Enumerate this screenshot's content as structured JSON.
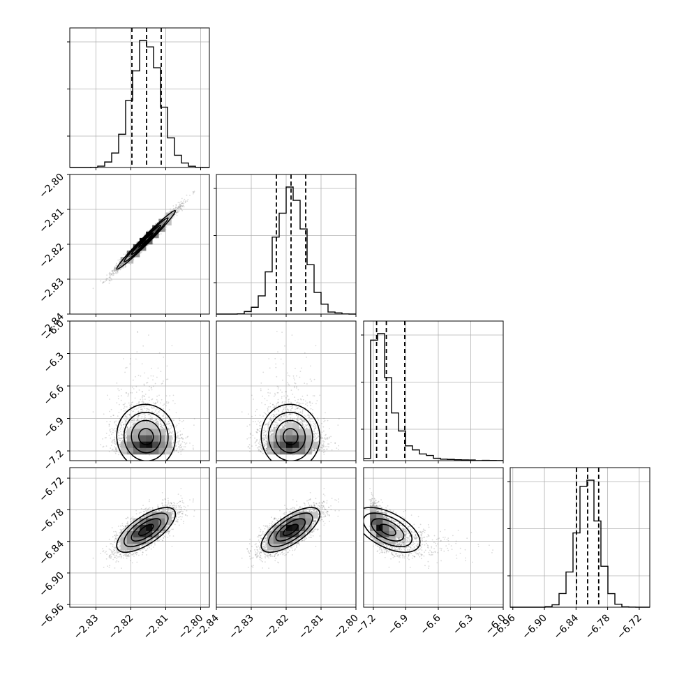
{
  "chart_data": {
    "type": "corner",
    "title": "",
    "parameters": [
      {
        "name": "",
        "ticks": [
          -2.83,
          -2.82,
          -2.81,
          -2.8
        ],
        "tick_labels": [
          "−2.83",
          "−2.82",
          "−2.81",
          "−2.80"
        ],
        "range": [
          -2.8375,
          -2.7975
        ],
        "mean": -2.8155,
        "sd": 0.0042,
        "skew": 0,
        "quantiles": [
          -2.8197,
          -2.8155,
          -2.8113
        ]
      },
      {
        "name": "",
        "ticks": [
          -2.84,
          -2.83,
          -2.82,
          -2.81,
          -2.8
        ],
        "tick_labels": [
          "−2.84",
          "−2.83",
          "−2.82",
          "−2.81",
          "−2.80"
        ],
        "range": [
          -2.84,
          -2.8
        ],
        "mean": -2.8186,
        "sd": 0.0042,
        "skew": 0,
        "quantiles": [
          -2.8228,
          -2.8186,
          -2.8144
        ]
      },
      {
        "name": "",
        "ticks": [
          -7.2,
          -6.9,
          -6.6,
          -6.3,
          -6.0
        ],
        "tick_labels": [
          "−7.2",
          "−6.9",
          "−6.6",
          "−6.3",
          "−6.0"
        ],
        "range": [
          -7.29,
          -6.0
        ],
        "mean": -7.11,
        "sd": 0.1,
        "skew": 1,
        "quantiles": [
          -7.17,
          -7.08,
          -6.91
        ]
      },
      {
        "name": "",
        "ticks": [
          -6.96,
          -6.9,
          -6.84,
          -6.78,
          -6.72
        ],
        "tick_labels": [
          "−6.96",
          "−6.90",
          "−6.84",
          "−6.78",
          "−6.72"
        ],
        "range": [
          -6.965,
          -6.7
        ],
        "mean": -6.818,
        "sd": 0.021,
        "skew": 0,
        "quantiles": [
          -6.839,
          -6.818,
          -6.797
        ]
      }
    ],
    "correlations": [
      {
        "pair": [
          1,
          0
        ],
        "rho": 0.985
      },
      {
        "pair": [
          2,
          0
        ],
        "rho": 0.0
      },
      {
        "pair": [
          2,
          1
        ],
        "rho": 0.0
      },
      {
        "pair": [
          3,
          0
        ],
        "rho": 0.7
      },
      {
        "pair": [
          3,
          1
        ],
        "rho": 0.7
      },
      {
        "pair": [
          3,
          2
        ],
        "rho": -0.6
      }
    ],
    "contour_levels_sigma": [
      0.5,
      1.0,
      1.5,
      2.0
    ],
    "grid": true,
    "legend": "none"
  }
}
